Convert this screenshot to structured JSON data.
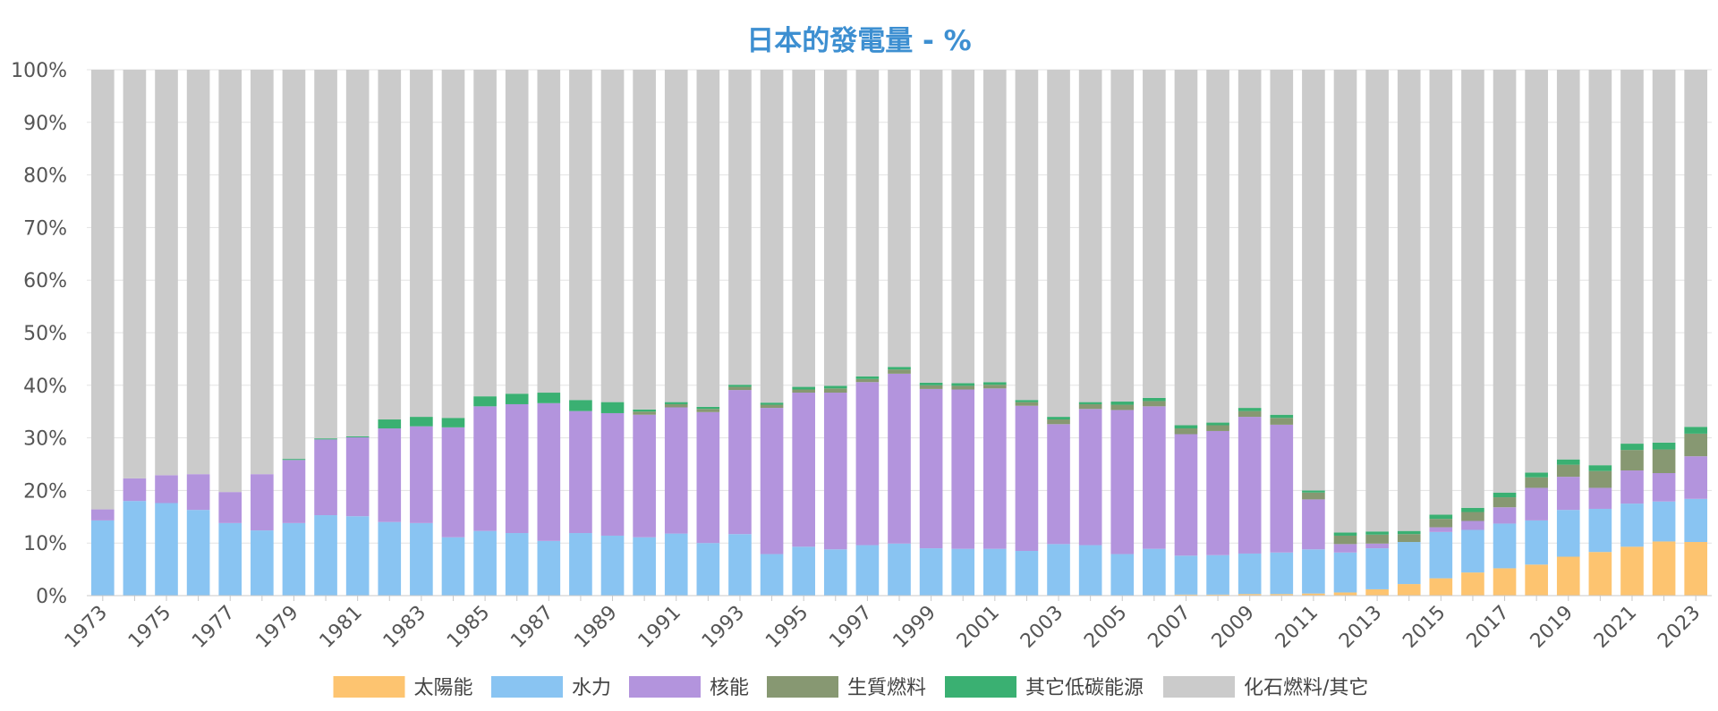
{
  "chart_data": {
    "type": "bar",
    "stacked": true,
    "title": "日本的發電量 - %",
    "xlabel": "",
    "ylabel": "",
    "ylim": [
      0,
      100
    ],
    "grid": true,
    "legend_position": "bottom",
    "categories": [
      "1973",
      "1974",
      "1975",
      "1976",
      "1977",
      "1978",
      "1979",
      "1980",
      "1981",
      "1982",
      "1983",
      "1984",
      "1985",
      "1986",
      "1987",
      "1988",
      "1989",
      "1990",
      "1991",
      "1992",
      "1993",
      "1994",
      "1995",
      "1996",
      "1997",
      "1998",
      "1999",
      "2000",
      "2001",
      "2002",
      "2003",
      "2004",
      "2005",
      "2006",
      "2007",
      "2008",
      "2009",
      "2010",
      "2011",
      "2012",
      "2013",
      "2014",
      "2015",
      "2016",
      "2017",
      "2018",
      "2019",
      "2020",
      "2021",
      "2022",
      "2023"
    ],
    "x_tick_labels": [
      "1973",
      "1975",
      "1977",
      "1979",
      "1981",
      "1983",
      "1985",
      "1987",
      "1989",
      "1991",
      "1993",
      "1995",
      "1997",
      "1999",
      "2001",
      "2003",
      "2005",
      "2007",
      "2009",
      "2011",
      "2013",
      "2015",
      "2017",
      "2019",
      "2021",
      "2023"
    ],
    "y_tick_labels": [
      "0%",
      "10%",
      "20%",
      "30%",
      "40%",
      "50%",
      "60%",
      "70%",
      "80%",
      "90%",
      "100%"
    ],
    "series": [
      {
        "name": "太陽能",
        "color": "#fdc470",
        "values": [
          0,
          0,
          0,
          0,
          0,
          0,
          0,
          0,
          0,
          0,
          0,
          0,
          0,
          0,
          0,
          0,
          0,
          0,
          0,
          0,
          0,
          0,
          0,
          0,
          0,
          0,
          0,
          0,
          0,
          0,
          0,
          0,
          0,
          0,
          0.2,
          0.2,
          0.3,
          0.3,
          0.4,
          0.6,
          1.2,
          2.2,
          3.3,
          4.4,
          5.2,
          5.9,
          7.4,
          8.3,
          9.3,
          10.3,
          10.2
        ]
      },
      {
        "name": "水力",
        "color": "#89c4f2",
        "values": [
          14.3,
          18.0,
          17.6,
          16.3,
          13.8,
          12.4,
          13.8,
          15.3,
          15.1,
          14.0,
          13.8,
          11.1,
          12.3,
          11.9,
          10.4,
          11.9,
          11.4,
          11.1,
          11.8,
          10.0,
          11.7,
          7.9,
          9.3,
          8.8,
          9.6,
          9.9,
          9.0,
          8.9,
          8.9,
          8.5,
          9.8,
          9.6,
          7.9,
          8.9,
          7.4,
          7.5,
          7.7,
          7.9,
          8.4,
          7.6,
          7.8,
          8.0,
          8.8,
          8.1,
          8.5,
          8.4,
          8.9,
          8.2,
          8.2,
          7.6,
          8.2
        ]
      },
      {
        "name": "核能",
        "color": "#b394dd",
        "values": [
          2.1,
          4.3,
          5.3,
          6.8,
          5.9,
          10.7,
          12.0,
          14.4,
          15.0,
          17.8,
          18.4,
          20.9,
          23.7,
          24.5,
          26.2,
          23.2,
          23.3,
          23.3,
          24.0,
          24.9,
          27.4,
          27.8,
          29.3,
          29.8,
          31.0,
          32.3,
          30.3,
          30.3,
          30.5,
          27.6,
          22.8,
          25.9,
          27.4,
          27.1,
          23.1,
          23.6,
          26.0,
          24.3,
          9.5,
          1.6,
          0.9,
          0,
          0.9,
          1.7,
          3.1,
          6.2,
          6.3,
          4.0,
          6.3,
          5.4,
          8.1
        ]
      },
      {
        "name": "生質燃料",
        "color": "#879872",
        "values": [
          0,
          0,
          0,
          0,
          0,
          0,
          0,
          0,
          0,
          0,
          0,
          0,
          0,
          0,
          0,
          0,
          0,
          0.6,
          0.6,
          0.6,
          0.6,
          0.6,
          0.6,
          0.8,
          0.6,
          0.8,
          0.7,
          0.7,
          0.7,
          0.7,
          0.9,
          0.9,
          1.0,
          1.0,
          1.1,
          1.1,
          1.1,
          1.3,
          1.3,
          1.6,
          1.7,
          1.5,
          1.6,
          1.7,
          1.9,
          2.0,
          2.3,
          3.2,
          3.9,
          4.5,
          4.3
        ]
      },
      {
        "name": "其它低碳能源",
        "color": "#3ab072",
        "values": [
          0,
          0,
          0,
          0,
          0,
          0,
          0.2,
          0.2,
          0.2,
          1.7,
          1.8,
          1.8,
          1.9,
          2.0,
          2.0,
          2.1,
          2.1,
          0.4,
          0.4,
          0.4,
          0.4,
          0.4,
          0.5,
          0.5,
          0.5,
          0.5,
          0.5,
          0.5,
          0.5,
          0.4,
          0.5,
          0.4,
          0.6,
          0.6,
          0.6,
          0.5,
          0.6,
          0.6,
          0.4,
          0.6,
          0.6,
          0.6,
          0.8,
          0.8,
          0.9,
          0.9,
          1.0,
          1.1,
          1.2,
          1.3,
          1.3
        ]
      },
      {
        "name": "化石燃料/其它",
        "color": "#cbcbcb",
        "values": [
          83.6,
          77.7,
          77.1,
          76.9,
          80.3,
          76.9,
          74.0,
          70.1,
          69.7,
          66.5,
          66.0,
          66.2,
          62.1,
          61.6,
          61.4,
          62.8,
          63.2,
          64.6,
          63.2,
          64.1,
          59.9,
          63.3,
          60.3,
          60.1,
          58.3,
          56.5,
          59.5,
          59.6,
          59.4,
          62.8,
          66.0,
          63.2,
          63.1,
          62.4,
          67.6,
          67.1,
          64.3,
          65.6,
          80.0,
          88.0,
          87.8,
          87.7,
          84.6,
          83.3,
          80.4,
          76.6,
          74.1,
          75.2,
          71.1,
          70.9,
          67.9
        ]
      }
    ]
  }
}
